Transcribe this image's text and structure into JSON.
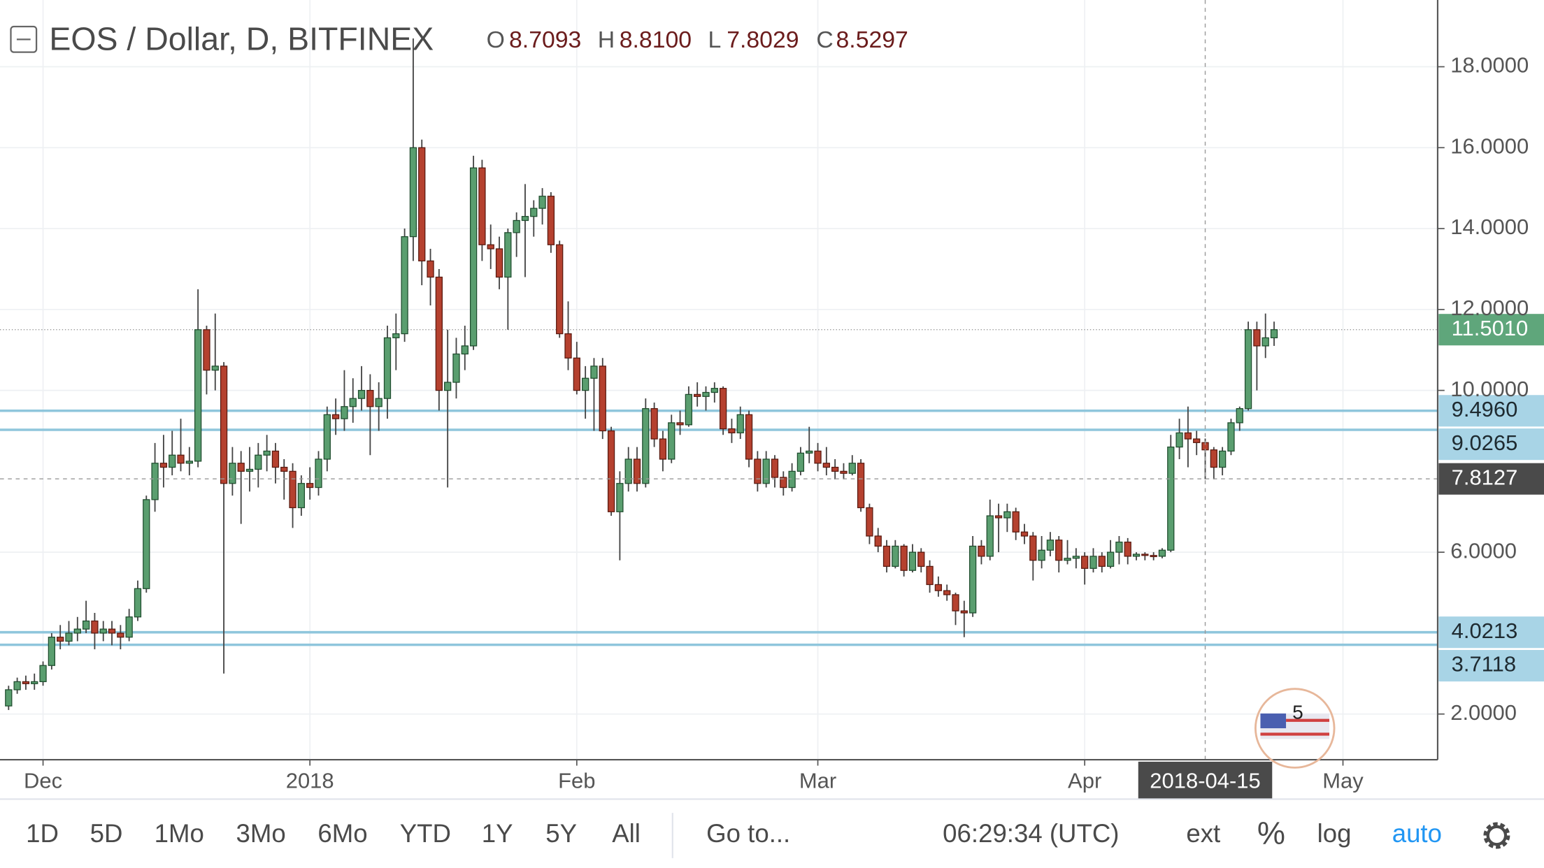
{
  "chart_data": {
    "type": "candlestick",
    "title": "EOS / Dollar, D, BITFINEX",
    "legend": [
      {
        "key": "O",
        "value": "8.7093"
      },
      {
        "key": "H",
        "value": "8.8100"
      },
      {
        "key": "L",
        "value": "7.8029"
      },
      {
        "key": "C",
        "value": "8.5297"
      }
    ],
    "up_color": "#5a9e6f",
    "up_border": "#1f4d2e",
    "down_color": "#b5412f",
    "down_border": "#5a1a10",
    "wick_color": "#444444",
    "level_color": "#8fc6dc",
    "price_color": "#5fa67b",
    "crosshair_color": "#4a4a4a",
    "grid": true,
    "xlim": [
      "2017-11-26",
      "2018-05-12"
    ],
    "xticks": [
      {
        "value": "2017-12-01",
        "label": "Dec"
      },
      {
        "value": "2018-01-01",
        "label": "2018"
      },
      {
        "value": "2018-02-01",
        "label": "Feb"
      },
      {
        "value": "2018-03-01",
        "label": "Mar"
      },
      {
        "value": "2018-04-01",
        "label": "Apr"
      },
      {
        "value": "2018-05-01",
        "label": "May"
      }
    ],
    "ylim": [
      0.87,
      19.65
    ],
    "yticks": [
      {
        "value": 2,
        "label": "2.0000"
      },
      {
        "value": 6,
        "label": "6.0000"
      },
      {
        "value": 10,
        "label": "10.0000"
      },
      {
        "value": 12,
        "label": "12.0000"
      },
      {
        "value": 14,
        "label": "14.0000"
      },
      {
        "value": 16,
        "label": "16.0000"
      },
      {
        "value": 18,
        "label": "18.0000"
      }
    ],
    "price_line": {
      "value": 11.501,
      "label": "11.5010"
    },
    "levels": [
      {
        "value": 9.496,
        "label": "9.4960"
      },
      {
        "value": 9.0265,
        "label": "9.0265"
      },
      {
        "value": 4.0213,
        "label": "4.0213"
      },
      {
        "value": 3.7118,
        "label": "3.7118"
      }
    ],
    "crosshair": {
      "x": "2018-04-15",
      "y": 7.8127
    },
    "x": [
      "2017-11-27",
      "2017-11-28",
      "2017-11-29",
      "2017-11-30",
      "2017-12-01",
      "2017-12-02",
      "2017-12-03",
      "2017-12-04",
      "2017-12-05",
      "2017-12-06",
      "2017-12-07",
      "2017-12-08",
      "2017-12-09",
      "2017-12-10",
      "2017-12-11",
      "2017-12-12",
      "2017-12-13",
      "2017-12-14",
      "2017-12-15",
      "2017-12-16",
      "2017-12-17",
      "2017-12-18",
      "2017-12-19",
      "2017-12-20",
      "2017-12-21",
      "2017-12-22",
      "2017-12-23",
      "2017-12-24",
      "2017-12-25",
      "2017-12-26",
      "2017-12-27",
      "2017-12-28",
      "2017-12-29",
      "2017-12-30",
      "2017-12-31",
      "2018-01-01",
      "2018-01-02",
      "2018-01-03",
      "2018-01-04",
      "2018-01-05",
      "2018-01-06",
      "2018-01-07",
      "2018-01-08",
      "2018-01-09",
      "2018-01-10",
      "2018-01-11",
      "2018-01-12",
      "2018-01-13",
      "2018-01-14",
      "2018-01-15",
      "2018-01-16",
      "2018-01-17",
      "2018-01-18",
      "2018-01-19",
      "2018-01-20",
      "2018-01-21",
      "2018-01-22",
      "2018-01-23",
      "2018-01-24",
      "2018-01-25",
      "2018-01-26",
      "2018-01-27",
      "2018-01-28",
      "2018-01-29",
      "2018-01-30",
      "2018-01-31",
      "2018-02-01",
      "2018-02-02",
      "2018-02-03",
      "2018-02-04",
      "2018-02-05",
      "2018-02-06",
      "2018-02-07",
      "2018-02-08",
      "2018-02-09",
      "2018-02-10",
      "2018-02-11",
      "2018-02-12",
      "2018-02-13",
      "2018-02-14",
      "2018-02-15",
      "2018-02-16",
      "2018-02-17",
      "2018-02-18",
      "2018-02-19",
      "2018-02-20",
      "2018-02-21",
      "2018-02-22",
      "2018-02-23",
      "2018-02-24",
      "2018-02-25",
      "2018-02-26",
      "2018-02-27",
      "2018-02-28",
      "2018-03-01",
      "2018-03-02",
      "2018-03-03",
      "2018-03-04",
      "2018-03-05",
      "2018-03-06",
      "2018-03-07",
      "2018-03-08",
      "2018-03-09",
      "2018-03-10",
      "2018-03-11",
      "2018-03-12",
      "2018-03-13",
      "2018-03-14",
      "2018-03-15",
      "2018-03-16",
      "2018-03-17",
      "2018-03-18",
      "2018-03-19",
      "2018-03-20",
      "2018-03-21",
      "2018-03-22",
      "2018-03-23",
      "2018-03-24",
      "2018-03-25",
      "2018-03-26",
      "2018-03-27",
      "2018-03-28",
      "2018-03-29",
      "2018-03-30",
      "2018-03-31",
      "2018-04-01",
      "2018-04-02",
      "2018-04-03",
      "2018-04-04",
      "2018-04-05",
      "2018-04-06",
      "2018-04-07",
      "2018-04-08",
      "2018-04-09",
      "2018-04-10",
      "2018-04-11",
      "2018-04-12",
      "2018-04-13",
      "2018-04-14",
      "2018-04-15",
      "2018-04-16",
      "2018-04-17",
      "2018-04-18",
      "2018-04-19",
      "2018-04-20",
      "2018-04-21",
      "2018-04-22",
      "2018-04-23"
    ],
    "candles": [
      [
        2.2,
        2.7,
        2.1,
        2.6
      ],
      [
        2.6,
        2.9,
        2.5,
        2.8
      ],
      [
        2.8,
        2.95,
        2.6,
        2.75
      ],
      [
        2.75,
        3.0,
        2.6,
        2.8
      ],
      [
        2.8,
        3.3,
        2.7,
        3.2
      ],
      [
        3.2,
        4.0,
        3.1,
        3.9
      ],
      [
        3.9,
        4.2,
        3.6,
        3.8
      ],
      [
        3.8,
        4.3,
        3.7,
        4.0
      ],
      [
        4.0,
        4.4,
        3.8,
        4.1
      ],
      [
        4.1,
        4.8,
        4.0,
        4.3
      ],
      [
        4.3,
        4.5,
        3.6,
        4.0
      ],
      [
        4.0,
        4.3,
        3.8,
        4.1
      ],
      [
        4.1,
        4.3,
        3.7,
        4.0
      ],
      [
        4.0,
        4.2,
        3.6,
        3.9
      ],
      [
        3.9,
        4.6,
        3.8,
        4.4
      ],
      [
        4.4,
        5.3,
        4.3,
        5.1
      ],
      [
        5.1,
        7.4,
        5.0,
        7.3
      ],
      [
        7.3,
        8.7,
        7.0,
        8.2
      ],
      [
        8.2,
        8.9,
        7.6,
        8.1
      ],
      [
        8.1,
        9.0,
        7.9,
        8.4
      ],
      [
        8.4,
        9.3,
        8.0,
        8.2
      ],
      [
        8.2,
        8.6,
        7.9,
        8.25
      ],
      [
        8.25,
        12.5,
        8.1,
        11.5
      ],
      [
        11.5,
        11.6,
        9.9,
        10.5
      ],
      [
        10.5,
        11.9,
        10.0,
        10.6
      ],
      [
        10.6,
        10.7,
        3.0,
        7.7
      ],
      [
        7.7,
        8.6,
        7.4,
        8.2
      ],
      [
        8.2,
        8.5,
        6.7,
        8.0
      ],
      [
        8.0,
        8.6,
        7.5,
        8.05
      ],
      [
        8.05,
        8.7,
        7.6,
        8.4
      ],
      [
        8.4,
        8.9,
        8.0,
        8.5
      ],
      [
        8.5,
        8.7,
        7.7,
        8.1
      ],
      [
        8.1,
        8.3,
        7.3,
        8.0
      ],
      [
        8.0,
        8.2,
        6.6,
        7.1
      ],
      [
        7.1,
        7.9,
        6.9,
        7.7
      ],
      [
        7.7,
        8.1,
        7.3,
        7.6
      ],
      [
        7.6,
        8.5,
        7.4,
        8.3
      ],
      [
        8.3,
        9.6,
        8.0,
        9.4
      ],
      [
        9.4,
        9.8,
        8.9,
        9.3
      ],
      [
        9.3,
        10.5,
        9.0,
        9.6
      ],
      [
        9.6,
        10.3,
        9.2,
        9.8
      ],
      [
        9.8,
        10.6,
        9.5,
        10.0
      ],
      [
        10.0,
        10.4,
        8.4,
        9.6
      ],
      [
        9.6,
        10.2,
        9.0,
        9.8
      ],
      [
        9.8,
        11.6,
        9.3,
        11.3
      ],
      [
        11.3,
        11.9,
        10.5,
        11.4
      ],
      [
        11.4,
        14.0,
        11.2,
        13.8
      ],
      [
        13.8,
        18.7,
        13.2,
        16.0
      ],
      [
        16.0,
        16.2,
        12.6,
        13.2
      ],
      [
        13.2,
        13.5,
        12.1,
        12.8
      ],
      [
        12.8,
        13.0,
        9.5,
        10.0
      ],
      [
        10.0,
        11.5,
        7.6,
        10.2
      ],
      [
        10.2,
        11.3,
        9.8,
        10.9
      ],
      [
        10.9,
        11.6,
        10.5,
        11.1
      ],
      [
        11.1,
        15.8,
        11.0,
        15.5
      ],
      [
        15.5,
        15.7,
        13.2,
        13.6
      ],
      [
        13.6,
        14.1,
        13.0,
        13.5
      ],
      [
        13.5,
        13.8,
        12.5,
        12.8
      ],
      [
        12.8,
        14.0,
        11.5,
        13.9
      ],
      [
        13.9,
        14.4,
        13.3,
        14.2
      ],
      [
        14.2,
        15.1,
        12.8,
        14.3
      ],
      [
        14.3,
        14.7,
        13.8,
        14.5
      ],
      [
        14.5,
        15.0,
        14.1,
        14.8
      ],
      [
        14.8,
        14.9,
        13.4,
        13.6
      ],
      [
        13.6,
        13.7,
        11.3,
        11.4
      ],
      [
        11.4,
        12.2,
        10.5,
        10.8
      ],
      [
        10.8,
        11.2,
        9.9,
        10.0
      ],
      [
        10.0,
        10.6,
        9.3,
        10.3
      ],
      [
        10.3,
        10.8,
        9.0,
        10.6
      ],
      [
        10.6,
        10.8,
        8.8,
        9.0
      ],
      [
        9.0,
        9.1,
        6.9,
        7.0
      ],
      [
        7.0,
        8.0,
        5.8,
        7.7
      ],
      [
        7.7,
        8.6,
        7.5,
        8.3
      ],
      [
        8.3,
        8.6,
        7.5,
        7.7
      ],
      [
        7.7,
        9.8,
        7.6,
        9.55
      ],
      [
        9.55,
        9.7,
        8.6,
        8.8
      ],
      [
        8.8,
        9.0,
        8.0,
        8.3
      ],
      [
        8.3,
        9.4,
        8.2,
        9.2
      ],
      [
        9.2,
        9.5,
        8.9,
        9.15
      ],
      [
        9.15,
        10.1,
        9.1,
        9.9
      ],
      [
        9.9,
        10.2,
        9.6,
        9.85
      ],
      [
        9.85,
        10.1,
        9.5,
        9.95
      ],
      [
        9.95,
        10.2,
        9.7,
        10.05
      ],
      [
        10.05,
        10.1,
        8.9,
        9.05
      ],
      [
        9.05,
        9.3,
        8.7,
        8.95
      ],
      [
        8.95,
        9.6,
        8.8,
        9.4
      ],
      [
        9.4,
        9.5,
        8.1,
        8.3
      ],
      [
        8.3,
        8.5,
        7.5,
        7.7
      ],
      [
        7.7,
        8.5,
        7.6,
        8.3
      ],
      [
        8.3,
        8.4,
        7.6,
        7.85
      ],
      [
        7.85,
        8.0,
        7.4,
        7.6
      ],
      [
        7.6,
        8.2,
        7.5,
        8.0
      ],
      [
        8.0,
        8.6,
        7.9,
        8.45
      ],
      [
        8.45,
        9.1,
        8.2,
        8.5
      ],
      [
        8.5,
        8.7,
        8.0,
        8.2
      ],
      [
        8.2,
        8.6,
        7.9,
        8.1
      ],
      [
        8.1,
        8.3,
        7.8,
        8.0
      ],
      [
        8.0,
        8.2,
        7.8,
        7.95
      ],
      [
        7.95,
        8.4,
        7.9,
        8.2
      ],
      [
        8.2,
        8.3,
        7.0,
        7.1
      ],
      [
        7.1,
        7.2,
        6.2,
        6.4
      ],
      [
        6.4,
        6.6,
        6.0,
        6.15
      ],
      [
        6.15,
        6.3,
        5.5,
        5.65
      ],
      [
        5.65,
        6.3,
        5.6,
        6.15
      ],
      [
        6.15,
        6.2,
        5.4,
        5.55
      ],
      [
        5.55,
        6.2,
        5.5,
        6.0
      ],
      [
        6.0,
        6.1,
        5.5,
        5.65
      ],
      [
        5.65,
        5.8,
        5.0,
        5.2
      ],
      [
        5.2,
        5.4,
        4.9,
        5.05
      ],
      [
        5.05,
        5.2,
        4.8,
        4.95
      ],
      [
        4.95,
        5.0,
        4.2,
        4.55
      ],
      [
        4.55,
        4.8,
        3.9,
        4.5
      ],
      [
        4.5,
        6.4,
        4.4,
        6.15
      ],
      [
        6.15,
        6.3,
        5.7,
        5.9
      ],
      [
        5.9,
        7.3,
        5.8,
        6.9
      ],
      [
        6.9,
        7.2,
        6.0,
        6.85
      ],
      [
        6.85,
        7.2,
        6.5,
        7.0
      ],
      [
        7.0,
        7.1,
        6.3,
        6.5
      ],
      [
        6.5,
        6.7,
        6.2,
        6.4
      ],
      [
        6.4,
        6.5,
        5.3,
        5.8
      ],
      [
        5.8,
        6.4,
        5.6,
        6.05
      ],
      [
        6.05,
        6.5,
        5.9,
        6.3
      ],
      [
        6.3,
        6.4,
        5.5,
        5.8
      ],
      [
        5.8,
        6.3,
        5.7,
        5.85
      ],
      [
        5.85,
        6.1,
        5.6,
        5.9
      ],
      [
        5.9,
        6.0,
        5.2,
        5.6
      ],
      [
        5.6,
        6.1,
        5.5,
        5.9
      ],
      [
        5.9,
        6.0,
        5.5,
        5.65
      ],
      [
        5.65,
        6.3,
        5.6,
        6.0
      ],
      [
        6.0,
        6.4,
        5.7,
        6.25
      ],
      [
        6.25,
        6.35,
        5.7,
        5.9
      ],
      [
        5.9,
        6.0,
        5.8,
        5.95
      ],
      [
        5.95,
        6.0,
        5.8,
        5.92
      ],
      [
        5.92,
        6.0,
        5.8,
        5.9
      ],
      [
        5.9,
        6.1,
        5.85,
        6.05
      ],
      [
        6.05,
        8.9,
        6.0,
        8.6
      ],
      [
        8.6,
        9.3,
        8.3,
        8.95
      ],
      [
        8.95,
        9.6,
        8.1,
        8.8
      ],
      [
        8.8,
        9.0,
        8.4,
        8.7093
      ],
      [
        8.7093,
        8.81,
        7.8029,
        8.5297
      ],
      [
        8.5297,
        8.6,
        7.8,
        8.1
      ],
      [
        8.1,
        8.6,
        7.9,
        8.5
      ],
      [
        8.5,
        9.3,
        8.4,
        9.2
      ],
      [
        9.2,
        9.6,
        9.0,
        9.55
      ],
      [
        9.55,
        11.7,
        9.5,
        11.5
      ],
      [
        11.5,
        11.7,
        10.0,
        11.1
      ],
      [
        11.1,
        11.9,
        10.8,
        11.3
      ],
      [
        11.3,
        11.7,
        11.1,
        11.501
      ]
    ]
  },
  "toolbar": {
    "ranges": [
      "1D",
      "5D",
      "1Mo",
      "3Mo",
      "6Mo",
      "YTD",
      "1Y",
      "5Y",
      "All"
    ],
    "goto": "Go to...",
    "clock": "06:29:34 (UTC)",
    "options": [
      "ext",
      "%",
      "log",
      "auto"
    ]
  },
  "badge": "5"
}
